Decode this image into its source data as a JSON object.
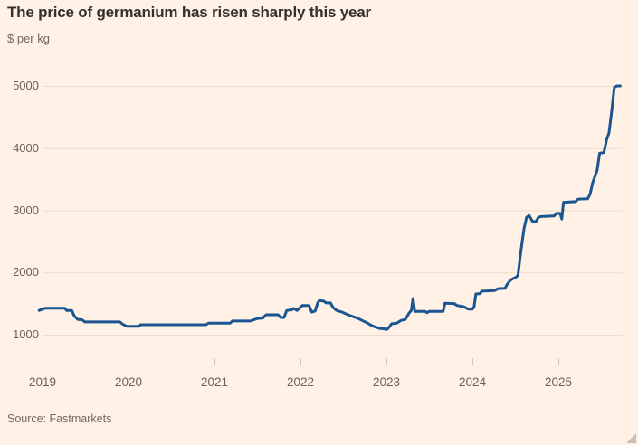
{
  "header": {
    "title": "The price of germanium has risen sharply this year",
    "subtitle": "$ per kg"
  },
  "footer": {
    "source": "Source: Fastmarkets"
  },
  "colors": {
    "background": "#fff1e5",
    "line": "#1a5590",
    "grid": "#ecdecd",
    "axis": "#d3c5b5",
    "title_text": "#33302e",
    "secondary_text": "#6b6257"
  },
  "chart_data": {
    "type": "line",
    "title": "The price of germanium has risen sharply this year",
    "xlabel": "",
    "ylabel": "$ per kg",
    "ylim": [
      1000,
      5000
    ],
    "x_ticks": [
      2019,
      2020,
      2021,
      2022,
      2023,
      2024,
      2025
    ],
    "y_ticks": [
      1000,
      2000,
      3000,
      4000,
      5000
    ],
    "grid": "horizontal",
    "legend": "none",
    "series": [
      {
        "name": "Germanium price ($ per kg)",
        "points": [
          [
            2018.96,
            1390
          ],
          [
            2019.03,
            1425
          ],
          [
            2019.26,
            1425
          ],
          [
            2019.28,
            1390
          ],
          [
            2019.34,
            1390
          ],
          [
            2019.37,
            1300
          ],
          [
            2019.41,
            1245
          ],
          [
            2019.46,
            1240
          ],
          [
            2019.49,
            1205
          ],
          [
            2019.9,
            1205
          ],
          [
            2019.93,
            1170
          ],
          [
            2019.98,
            1135
          ],
          [
            2020.12,
            1135
          ],
          [
            2020.14,
            1160
          ],
          [
            2020.9,
            1160
          ],
          [
            2020.93,
            1185
          ],
          [
            2021.18,
            1185
          ],
          [
            2021.21,
            1220
          ],
          [
            2021.42,
            1220
          ],
          [
            2021.5,
            1260
          ],
          [
            2021.56,
            1265
          ],
          [
            2021.6,
            1320
          ],
          [
            2021.74,
            1320
          ],
          [
            2021.77,
            1276
          ],
          [
            2021.81,
            1276
          ],
          [
            2021.84,
            1388
          ],
          [
            2021.9,
            1400
          ],
          [
            2021.92,
            1422
          ],
          [
            2021.96,
            1390
          ],
          [
            2022.0,
            1440
          ],
          [
            2022.02,
            1470
          ],
          [
            2022.1,
            1470
          ],
          [
            2022.13,
            1364
          ],
          [
            2022.17,
            1380
          ],
          [
            2022.2,
            1510
          ],
          [
            2022.22,
            1548
          ],
          [
            2022.27,
            1540
          ],
          [
            2022.3,
            1510
          ],
          [
            2022.35,
            1510
          ],
          [
            2022.38,
            1436
          ],
          [
            2022.42,
            1390
          ],
          [
            2022.48,
            1365
          ],
          [
            2022.56,
            1315
          ],
          [
            2022.66,
            1266
          ],
          [
            2022.77,
            1194
          ],
          [
            2022.84,
            1140
          ],
          [
            2022.92,
            1100
          ],
          [
            2022.97,
            1095
          ],
          [
            2023.0,
            1083
          ],
          [
            2023.02,
            1100
          ],
          [
            2023.06,
            1175
          ],
          [
            2023.12,
            1185
          ],
          [
            2023.17,
            1230
          ],
          [
            2023.22,
            1245
          ],
          [
            2023.26,
            1340
          ],
          [
            2023.29,
            1390
          ],
          [
            2023.31,
            1580
          ],
          [
            2023.33,
            1374
          ],
          [
            2023.45,
            1374
          ],
          [
            2023.47,
            1355
          ],
          [
            2023.5,
            1375
          ],
          [
            2023.66,
            1375
          ],
          [
            2023.68,
            1505
          ],
          [
            2023.79,
            1500
          ],
          [
            2023.82,
            1470
          ],
          [
            2023.9,
            1450
          ],
          [
            2023.95,
            1412
          ],
          [
            2024.0,
            1412
          ],
          [
            2024.02,
            1450
          ],
          [
            2024.04,
            1655
          ],
          [
            2024.09,
            1660
          ],
          [
            2024.11,
            1700
          ],
          [
            2024.26,
            1710
          ],
          [
            2024.3,
            1740
          ],
          [
            2024.38,
            1745
          ],
          [
            2024.4,
            1800
          ],
          [
            2024.44,
            1873
          ],
          [
            2024.47,
            1900
          ],
          [
            2024.5,
            1920
          ],
          [
            2024.53,
            1950
          ],
          [
            2024.56,
            2300
          ],
          [
            2024.6,
            2700
          ],
          [
            2024.63,
            2890
          ],
          [
            2024.66,
            2915
          ],
          [
            2024.7,
            2820
          ],
          [
            2024.74,
            2820
          ],
          [
            2024.77,
            2890
          ],
          [
            2024.8,
            2900
          ],
          [
            2024.95,
            2910
          ],
          [
            2024.98,
            2950
          ],
          [
            2025.02,
            2950
          ],
          [
            2025.04,
            2860
          ],
          [
            2025.06,
            3130
          ],
          [
            2025.2,
            3140
          ],
          [
            2025.23,
            3180
          ],
          [
            2025.34,
            3185
          ],
          [
            2025.37,
            3260
          ],
          [
            2025.4,
            3450
          ],
          [
            2025.45,
            3640
          ],
          [
            2025.48,
            3920
          ],
          [
            2025.53,
            3930
          ],
          [
            2025.56,
            4130
          ],
          [
            2025.59,
            4250
          ],
          [
            2025.62,
            4590
          ],
          [
            2025.65,
            4975
          ],
          [
            2025.68,
            5000
          ],
          [
            2025.72,
            5000
          ]
        ]
      }
    ]
  }
}
